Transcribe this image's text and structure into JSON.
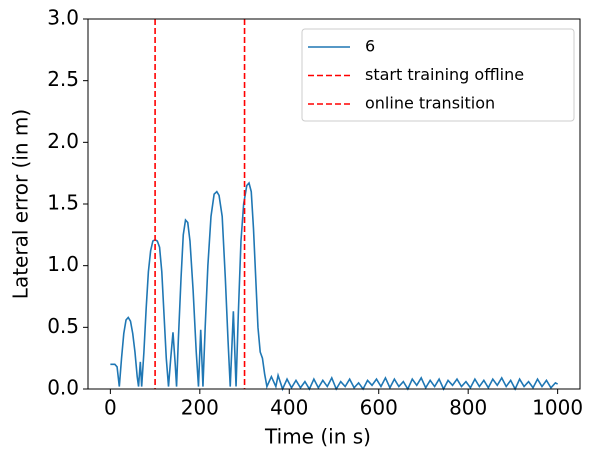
{
  "chart_data": {
    "type": "line",
    "x_label": "Time (in s)",
    "y_label": "Lateral error (in m)",
    "x": [
      0,
      10,
      15,
      20,
      25,
      30,
      35,
      40,
      45,
      50,
      55,
      60,
      63,
      67,
      70,
      75,
      80,
      85,
      90,
      95,
      100,
      105,
      110,
      115,
      120,
      125,
      130,
      135,
      140,
      145,
      148,
      152,
      158,
      163,
      168,
      173,
      178,
      185,
      192,
      197,
      202,
      207,
      212,
      218,
      225,
      232,
      238,
      243,
      250,
      257,
      263,
      268,
      275,
      281,
      286,
      292,
      298,
      305,
      310,
      315,
      320,
      325,
      330,
      335,
      340,
      345,
      350,
      360,
      370,
      375,
      385,
      395,
      405,
      415,
      425,
      435,
      445,
      455,
      465,
      475,
      485,
      495,
      505,
      515,
      525,
      535,
      545,
      555,
      565,
      575,
      585,
      595,
      605,
      615,
      625,
      635,
      645,
      655,
      665,
      675,
      685,
      695,
      705,
      715,
      725,
      735,
      745,
      755,
      765,
      775,
      785,
      795,
      805,
      815,
      825,
      835,
      845,
      855,
      865,
      875,
      885,
      895,
      905,
      915,
      925,
      935,
      945,
      955,
      965,
      975,
      985,
      995,
      1000
    ],
    "series": [
      {
        "name": "6",
        "color": "#1f77b4",
        "values": [
          0.2,
          0.2,
          0.18,
          0.02,
          0.25,
          0.45,
          0.56,
          0.58,
          0.55,
          0.45,
          0.3,
          0.1,
          0.02,
          0.22,
          0.02,
          0.3,
          0.65,
          0.95,
          1.12,
          1.2,
          1.21,
          1.2,
          1.15,
          0.95,
          0.6,
          0.25,
          0.02,
          0.25,
          0.46,
          0.2,
          0.02,
          0.4,
          0.9,
          1.25,
          1.37,
          1.35,
          1.2,
          0.8,
          0.3,
          0.02,
          0.48,
          0.02,
          0.5,
          1.0,
          1.4,
          1.58,
          1.6,
          1.57,
          1.4,
          0.9,
          0.4,
          0.02,
          0.63,
          0.02,
          0.6,
          1.2,
          1.5,
          1.65,
          1.67,
          1.6,
          1.3,
          0.9,
          0.5,
          0.3,
          0.25,
          0.12,
          0.02,
          0.1,
          0.02,
          0.11,
          0.0,
          0.08,
          0.01,
          0.07,
          0.01,
          0.06,
          0.0,
          0.08,
          0.01,
          0.07,
          0.02,
          0.09,
          0.0,
          0.06,
          0.02,
          0.08,
          0.01,
          0.05,
          0.0,
          0.07,
          0.03,
          0.08,
          0.02,
          0.09,
          0.01,
          0.08,
          0.02,
          0.06,
          0.0,
          0.08,
          0.03,
          0.09,
          0.01,
          0.07,
          0.02,
          0.08,
          0.0,
          0.07,
          0.03,
          0.08,
          0.02,
          0.06,
          0.01,
          0.08,
          0.02,
          0.07,
          0.01,
          0.08,
          0.03,
          0.09,
          0.02,
          0.07,
          0.0,
          0.08,
          0.02,
          0.06,
          0.01,
          0.08,
          0.02,
          0.07,
          0.01,
          0.05,
          0.04
        ]
      }
    ],
    "vlines": [
      {
        "name": "start training offline",
        "color": "#ff0000",
        "x": 100
      },
      {
        "name": "online transition",
        "color": "#ff0000",
        "x": 300
      }
    ],
    "xlim": [
      -50,
      1050
    ],
    "xticks": [
      0,
      200,
      400,
      600,
      800,
      1000
    ],
    "ylim": [
      0,
      3
    ],
    "yticks": [
      {
        "value": 0,
        "label": "0.0"
      },
      0.5,
      {
        "value": 1,
        "label": "1.0"
      },
      1.5,
      {
        "value": 2,
        "label": "2.0"
      },
      2.5,
      {
        "value": 3,
        "label": "3.0"
      }
    ],
    "grid": false,
    "legend": "upper right"
  }
}
